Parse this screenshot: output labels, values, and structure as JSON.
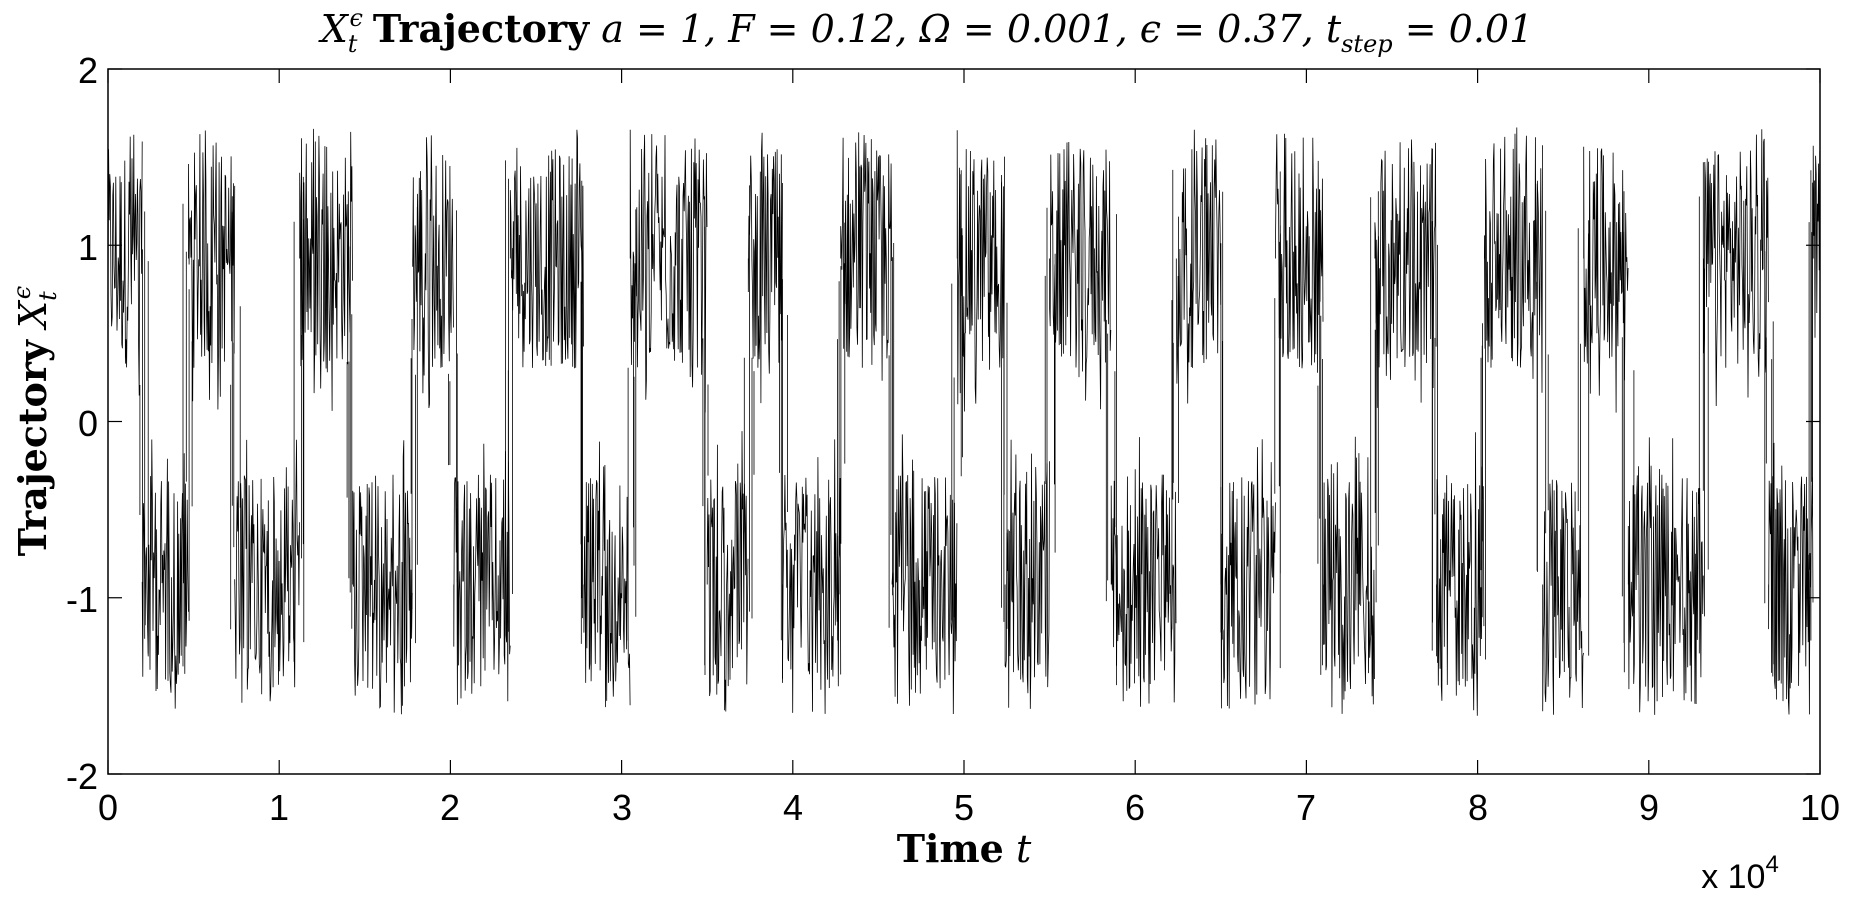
{
  "chart_data": {
    "type": "line",
    "title": "X_t^ε Trajectory a = 1, F = 0.12, Ω = 0.001, ε = 0.37, t_step = 0.01",
    "title_parts": {
      "symbol": "X",
      "sub": "t",
      "sup": "ϵ",
      "bold": "Trajectory",
      "params": "a = 1, F = 0.12, Ω = 0.001, ϵ = 0.37, t",
      "params_sub": "step",
      "params_tail": " = 0.01"
    },
    "xlabel": {
      "bold": "Time",
      "var": "t"
    },
    "ylabel": {
      "bold": "Trajectory",
      "symbol": "X",
      "sub": "t",
      "sup": "ϵ"
    },
    "x_multiplier": "x 10",
    "x_multiplier_exp": "4",
    "xlim": [
      0,
      10
    ],
    "ylim": [
      -2,
      2
    ],
    "xticks": [
      "0",
      "1",
      "2",
      "3",
      "4",
      "5",
      "6",
      "7",
      "8",
      "9",
      "10"
    ],
    "yticks": [
      "2",
      "1",
      "0",
      "-1",
      "-2"
    ],
    "grid": false,
    "line_color": "#000000",
    "series": [
      {
        "wells": {
          "upper": 0.9,
          "lower": -0.9
        },
        "well_band": [
          0.3,
          1.55
        ],
        "segments": [
          {
            "start": 0.0,
            "end": 0.2,
            "state": "upper"
          },
          {
            "start": 0.2,
            "end": 0.47,
            "state": "lower"
          },
          {
            "start": 0.47,
            "end": 0.74,
            "state": "upper"
          },
          {
            "start": 0.74,
            "end": 1.12,
            "state": "lower"
          },
          {
            "start": 1.12,
            "end": 1.43,
            "state": "upper"
          },
          {
            "start": 1.43,
            "end": 1.78,
            "state": "lower"
          },
          {
            "start": 1.78,
            "end": 2.02,
            "state": "upper"
          },
          {
            "start": 2.02,
            "end": 2.35,
            "state": "lower"
          },
          {
            "start": 2.35,
            "end": 2.78,
            "state": "upper"
          },
          {
            "start": 2.78,
            "end": 3.05,
            "state": "lower"
          },
          {
            "start": 3.05,
            "end": 3.5,
            "state": "upper"
          },
          {
            "start": 3.5,
            "end": 3.74,
            "state": "lower"
          },
          {
            "start": 3.74,
            "end": 3.94,
            "state": "upper"
          },
          {
            "start": 3.94,
            "end": 4.28,
            "state": "lower"
          },
          {
            "start": 4.28,
            "end": 4.58,
            "state": "upper"
          },
          {
            "start": 4.58,
            "end": 4.96,
            "state": "lower"
          },
          {
            "start": 4.96,
            "end": 5.24,
            "state": "upper"
          },
          {
            "start": 5.24,
            "end": 5.5,
            "state": "lower"
          },
          {
            "start": 5.5,
            "end": 5.86,
            "state": "upper"
          },
          {
            "start": 5.86,
            "end": 6.24,
            "state": "lower"
          },
          {
            "start": 6.24,
            "end": 6.5,
            "state": "upper"
          },
          {
            "start": 6.5,
            "end": 6.82,
            "state": "lower"
          },
          {
            "start": 6.82,
            "end": 7.1,
            "state": "upper"
          },
          {
            "start": 7.1,
            "end": 7.4,
            "state": "lower"
          },
          {
            "start": 7.4,
            "end": 7.76,
            "state": "upper"
          },
          {
            "start": 7.76,
            "end": 8.04,
            "state": "lower"
          },
          {
            "start": 8.04,
            "end": 8.38,
            "state": "upper"
          },
          {
            "start": 8.38,
            "end": 8.62,
            "state": "lower"
          },
          {
            "start": 8.62,
            "end": 8.88,
            "state": "upper"
          },
          {
            "start": 8.88,
            "end": 9.32,
            "state": "lower"
          },
          {
            "start": 9.32,
            "end": 9.7,
            "state": "upper"
          },
          {
            "start": 9.7,
            "end": 9.96,
            "state": "lower"
          },
          {
            "start": 9.96,
            "end": 10.0,
            "state": "upper"
          }
        ]
      }
    ]
  }
}
